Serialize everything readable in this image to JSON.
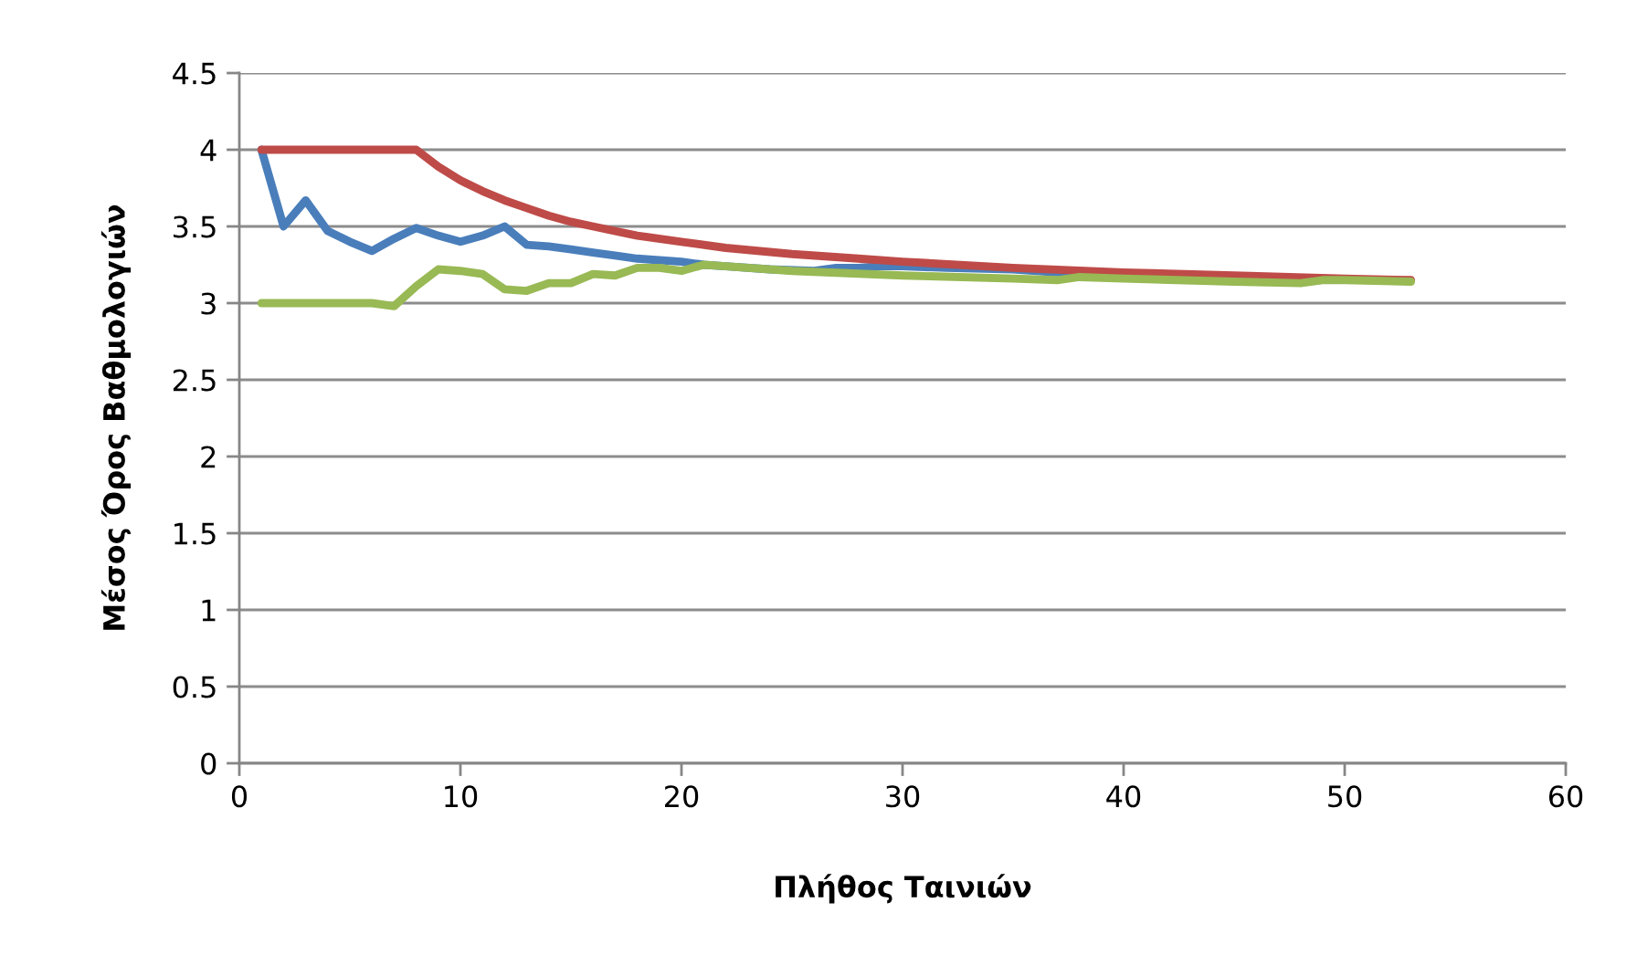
{
  "chart_data": {
    "type": "line",
    "xlabel": "Πλήθος Ταινιών",
    "ylabel": "Μέσος Όρος Βαθμολογιών",
    "xlim": [
      0,
      60
    ],
    "xticks": [
      0,
      10,
      20,
      30,
      40,
      50,
      60
    ],
    "ylim": [
      0,
      4.5
    ],
    "yticks": [
      0,
      0.5,
      1,
      1.5,
      2,
      2.5,
      3,
      3.5,
      4,
      4.5
    ],
    "grid": "y",
    "marker": "none",
    "line_style": "solid",
    "series": [
      {
        "color": "#4a7ebb",
        "x": [
          1,
          2,
          3,
          4,
          5,
          6,
          7,
          8,
          9,
          10,
          11,
          12,
          13,
          14,
          15,
          16,
          17,
          18,
          19,
          20,
          21,
          22,
          24,
          26,
          27,
          28,
          29,
          30,
          32,
          35,
          38
        ],
        "values": [
          4.0,
          3.5,
          3.67,
          3.47,
          3.4,
          3.34,
          3.42,
          3.49,
          3.44,
          3.4,
          3.44,
          3.5,
          3.38,
          3.37,
          3.35,
          3.33,
          3.31,
          3.29,
          3.28,
          3.27,
          3.25,
          3.24,
          3.22,
          3.21,
          3.23,
          3.23,
          3.24,
          3.24,
          3.23,
          3.22,
          3.19
        ]
      },
      {
        "color": "#be4b48",
        "x": [
          1,
          8,
          9,
          10,
          11,
          12,
          13,
          14,
          15,
          16,
          18,
          20,
          22,
          25,
          28,
          30,
          35,
          40,
          45,
          50,
          53
        ],
        "values": [
          4.0,
          4.0,
          3.89,
          3.8,
          3.73,
          3.67,
          3.62,
          3.57,
          3.53,
          3.5,
          3.44,
          3.4,
          3.36,
          3.32,
          3.29,
          3.27,
          3.23,
          3.2,
          3.18,
          3.16,
          3.15
        ]
      },
      {
        "color": "#98b954",
        "x": [
          1,
          6,
          7,
          8,
          9,
          10,
          11,
          12,
          13,
          14,
          15,
          16,
          17,
          18,
          19,
          20,
          21,
          22,
          25,
          30,
          35,
          37,
          38,
          40,
          45,
          48,
          49,
          50,
          53
        ],
        "values": [
          3.0,
          3.0,
          2.98,
          3.11,
          3.22,
          3.21,
          3.19,
          3.09,
          3.08,
          3.13,
          3.13,
          3.19,
          3.18,
          3.23,
          3.23,
          3.21,
          3.25,
          3.24,
          3.21,
          3.18,
          3.16,
          3.15,
          3.17,
          3.16,
          3.14,
          3.13,
          3.15,
          3.15,
          3.14
        ]
      }
    ]
  }
}
